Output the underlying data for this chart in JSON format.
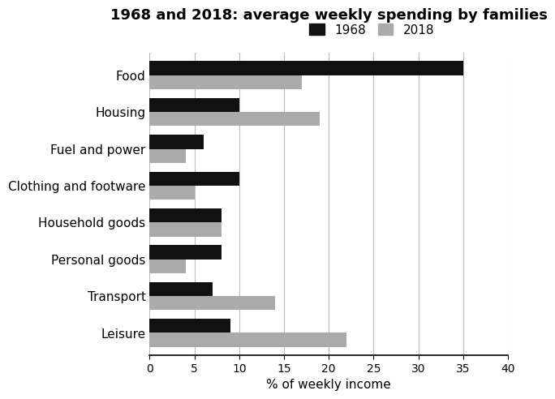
{
  "title": "1968 and 2018: average weekly spending by families",
  "categories": [
    "Leisure",
    "Transport",
    "Personal goods",
    "Household goods",
    "Clothing and footware",
    "Fuel and power",
    "Housing",
    "Food"
  ],
  "values_1968": [
    9,
    7,
    8,
    8,
    10,
    6,
    10,
    35
  ],
  "values_2018": [
    22,
    14,
    4,
    8,
    5,
    4,
    19,
    17
  ],
  "color_1968": "#111111",
  "color_2018": "#aaaaaa",
  "xlabel": "% of weekly income",
  "xlim": [
    0,
    40
  ],
  "xticks": [
    0,
    5,
    10,
    15,
    20,
    25,
    30,
    35,
    40
  ],
  "legend_labels": [
    "1968",
    "2018"
  ],
  "bar_height": 0.38,
  "background_color": "#ffffff",
  "title_fontsize": 13,
  "label_fontsize": 11,
  "tick_fontsize": 10
}
